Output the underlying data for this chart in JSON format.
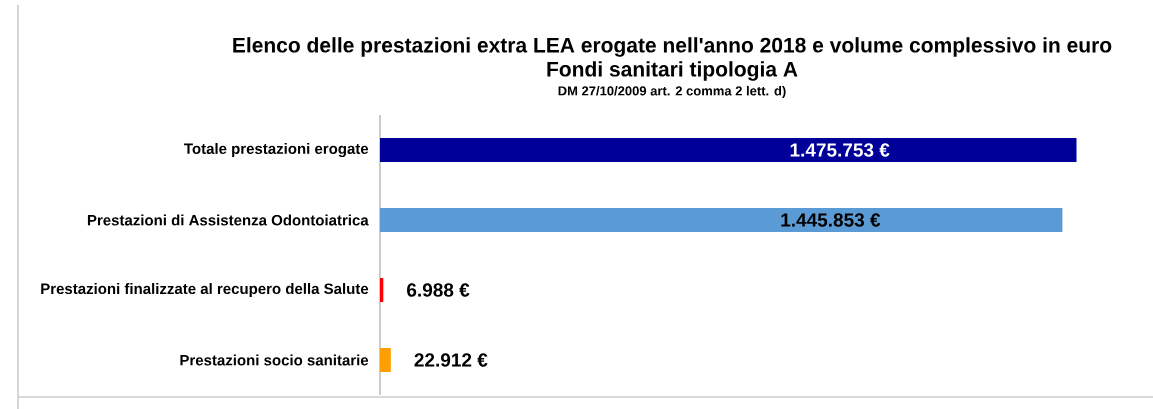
{
  "chart_data": {
    "type": "bar",
    "orientation": "horizontal",
    "title": "Elenco delle prestazioni extra LEA erogate nell'anno 2018 e volume complessivo in euro",
    "subtitle": "Fondi sanitari tipologia A",
    "annotations": [
      "DM 27/10/2009 art. 2 comma 2 lett. d)"
    ],
    "categories": [
      "Totale prestazioni erogate",
      "Prestazioni di Assistenza Odontoiatrica",
      "Prestazioni finalizzate al recupero della Salute",
      "Prestazioni socio sanitarie"
    ],
    "values": [
      1475753,
      1445853,
      6988,
      22912
    ],
    "colors": [
      "#000099",
      "#5b9bd5",
      "#ff0000",
      "#ffa000"
    ],
    "value_labels": [
      "1.475.753 €",
      "1.445.853 €",
      "6.988 €",
      "22.912 €"
    ]
  }
}
